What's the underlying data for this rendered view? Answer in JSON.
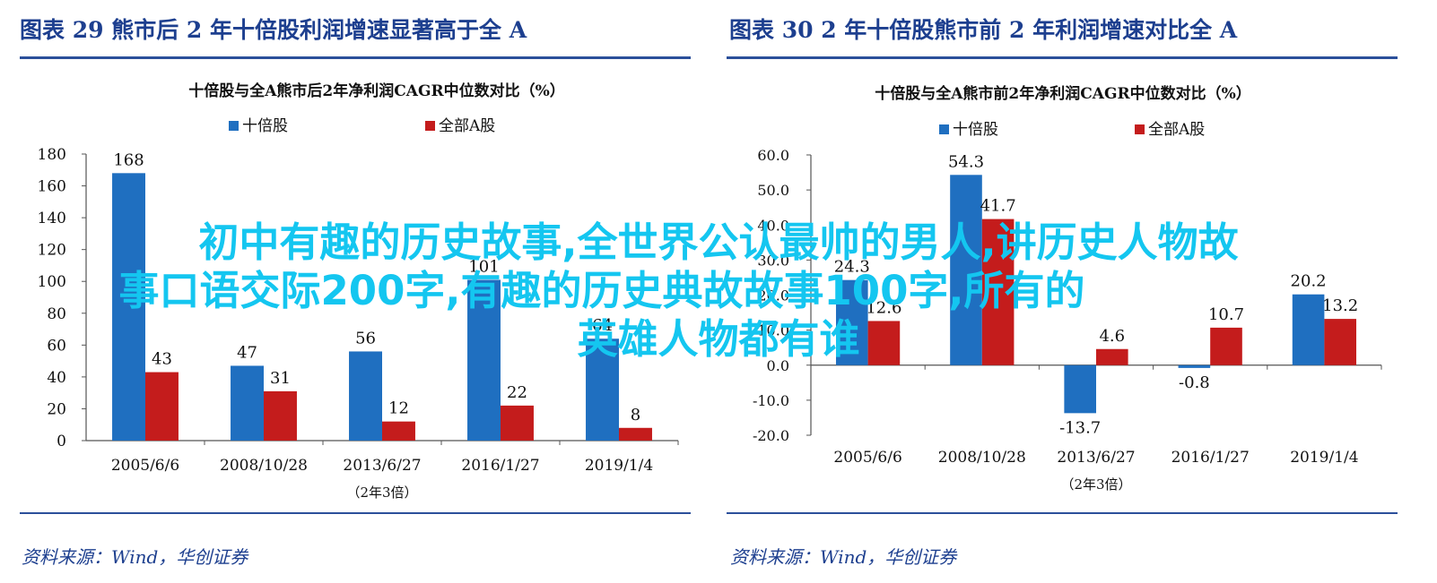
{
  "panels": [
    {
      "fig_title": "图表  29    熊市后 2 年十倍股利润增速显著高于全 A",
      "source": "资料来源：Wind，华创证券"
    },
    {
      "fig_title": "图表  30    2 年十倍股熊市前 2 年利润增速对比全 A",
      "source": "资料来源：Wind，华创证券"
    }
  ],
  "overlay": {
    "line1": "初中有趣的历史故事,全世界公认最帅的男人,讲历史人物故",
    "line2": "事口语交际200字,有趣的历史典故故事100字,所有的",
    "line3": "英雄人物都有谁"
  },
  "colors": {
    "series1": "#1f6fc0",
    "series2": "#c41c1c",
    "axis": "#555555",
    "title_blue": "#1d3f8f"
  },
  "chart_data": [
    {
      "type": "bar",
      "title": "十倍股与全A熊市后2年净利润CAGR中位数对比（%）",
      "categories": [
        "2005/6/6",
        "2008/10/28",
        "2013/6/27",
        "2016/1/27",
        "2019/1/4"
      ],
      "series": [
        {
          "name": "十倍股",
          "values": [
            168,
            47,
            56,
            101,
            64
          ],
          "labels": [
            "168",
            "47",
            "56",
            "101",
            "64"
          ]
        },
        {
          "name": "全部A股",
          "values": [
            43,
            31,
            12,
            22,
            8
          ],
          "labels": [
            "43",
            "31",
            "12",
            "22",
            "8"
          ]
        }
      ],
      "ylim": [
        0,
        180
      ],
      "yticks": [
        "0",
        "20",
        "40",
        "60",
        "80",
        "100",
        "120",
        "140",
        "160",
        "180"
      ],
      "legend": "top",
      "note": "（2年3倍）",
      "grid": false
    },
    {
      "type": "bar",
      "title": "十倍股与全A熊市前2年净利润CAGR中位数对比（%）",
      "categories": [
        "2005/6/6",
        "2008/10/28",
        "2013/6/27",
        "2016/1/27",
        "2019/1/4"
      ],
      "series": [
        {
          "name": "十倍股",
          "values": [
            24.3,
            54.3,
            -13.7,
            -0.8,
            20.2
          ],
          "labels": [
            "24.3",
            "54.3",
            "-13.7",
            "-0.8",
            "20.2"
          ]
        },
        {
          "name": "全部A股",
          "values": [
            12.6,
            41.7,
            4.6,
            10.7,
            13.2
          ],
          "labels": [
            "12.6",
            "41.7",
            "4.6",
            "10.7",
            "13.2"
          ]
        }
      ],
      "ylim": [
        -20,
        60
      ],
      "yticks": [
        "-20.0",
        "-10.0",
        "0.0",
        "10.0",
        "20.0",
        "30.0",
        "40.0",
        "50.0",
        "60.0"
      ],
      "legend": "top",
      "note": "（2年3倍）",
      "grid": false
    }
  ]
}
